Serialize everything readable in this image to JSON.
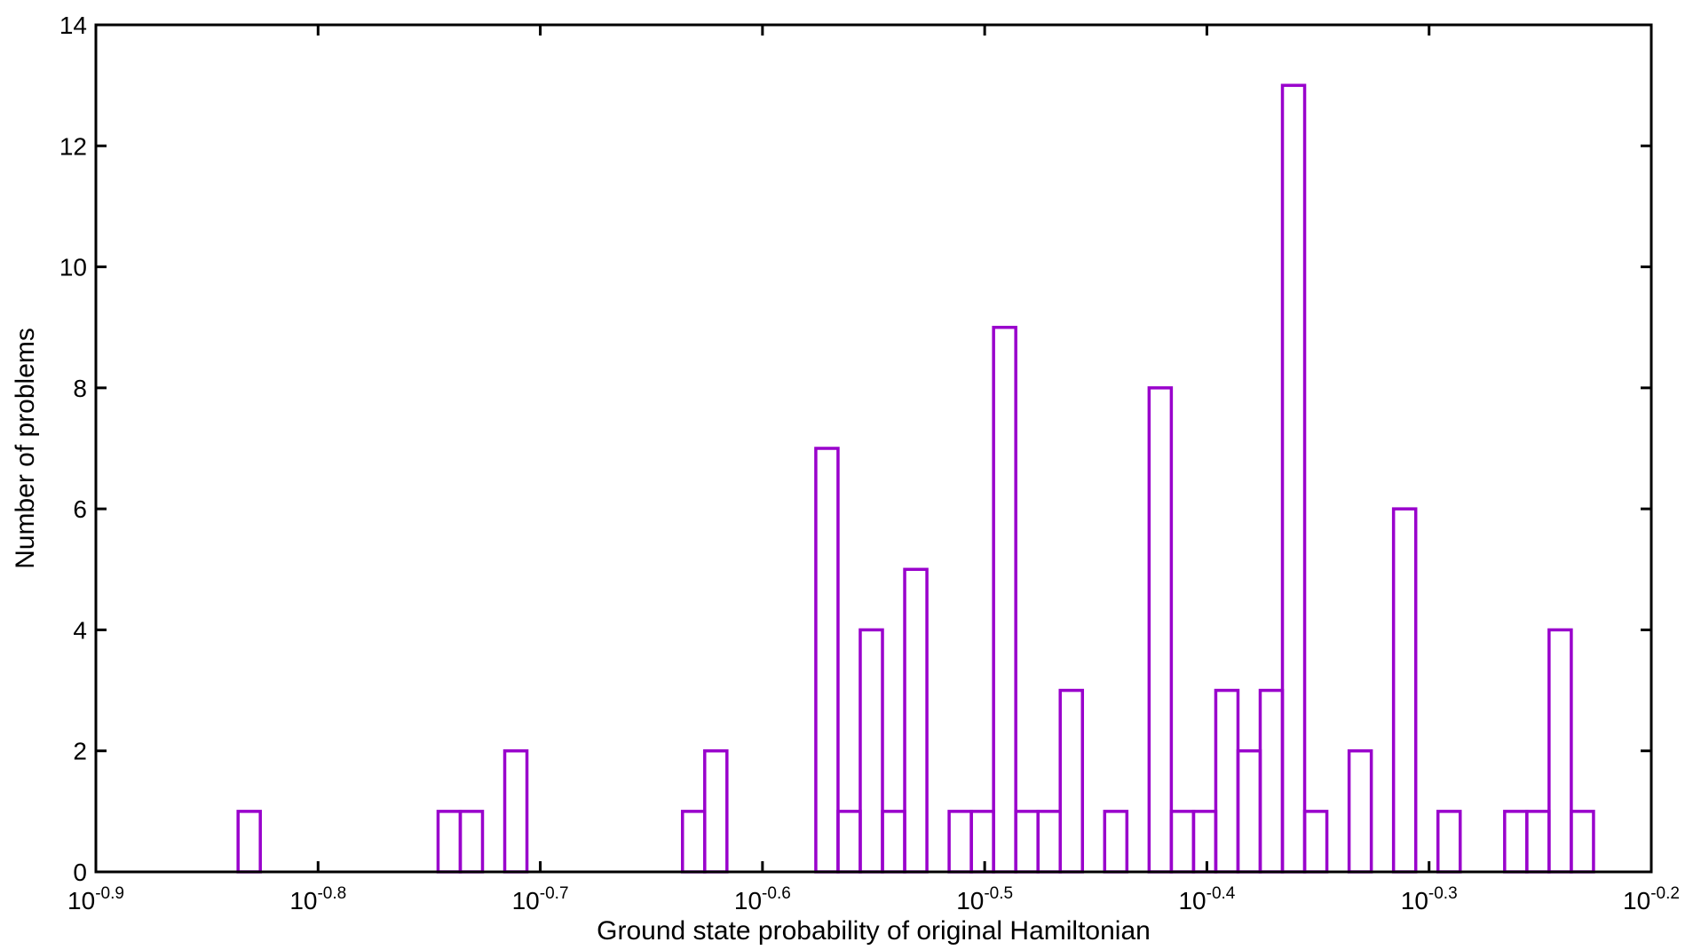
{
  "chart_data": {
    "type": "bar",
    "histogram": true,
    "xlabel": "Ground state probability of original Hamiltonian",
    "ylabel": "Number of problems",
    "x_scale": "log10",
    "xlim_exponent": [
      -0.9,
      -0.2
    ],
    "ylim": [
      0,
      14
    ],
    "x_ticks": [
      {
        "base": "10",
        "exp": "-0.9",
        "value": -0.9
      },
      {
        "base": "10",
        "exp": "-0.8",
        "value": -0.8
      },
      {
        "base": "10",
        "exp": "-0.7",
        "value": -0.7
      },
      {
        "base": "10",
        "exp": "-0.6",
        "value": -0.6
      },
      {
        "base": "10",
        "exp": "-0.5",
        "value": -0.5
      },
      {
        "base": "10",
        "exp": "-0.4",
        "value": -0.4
      },
      {
        "base": "10",
        "exp": "-0.3",
        "value": -0.3
      },
      {
        "base": "10",
        "exp": "-0.2",
        "value": -0.2
      }
    ],
    "y_ticks": [
      "0",
      "2",
      "4",
      "6",
      "8",
      "10",
      "12",
      "14"
    ],
    "bar_color": "#9900cc",
    "bars": [
      {
        "x0": -0.836,
        "x1": -0.826,
        "count": 1
      },
      {
        "x0": -0.746,
        "x1": -0.736,
        "count": 1
      },
      {
        "x0": -0.736,
        "x1": -0.726,
        "count": 1
      },
      {
        "x0": -0.716,
        "x1": -0.706,
        "count": 2
      },
      {
        "x0": -0.636,
        "x1": -0.626,
        "count": 1
      },
      {
        "x0": -0.626,
        "x1": -0.616,
        "count": 2
      },
      {
        "x0": -0.576,
        "x1": -0.566,
        "count": 7
      },
      {
        "x0": -0.566,
        "x1": -0.556,
        "count": 1
      },
      {
        "x0": -0.556,
        "x1": -0.546,
        "count": 4
      },
      {
        "x0": -0.546,
        "x1": -0.536,
        "count": 1
      },
      {
        "x0": -0.536,
        "x1": -0.526,
        "count": 5
      },
      {
        "x0": -0.516,
        "x1": -0.506,
        "count": 1
      },
      {
        "x0": -0.506,
        "x1": -0.496,
        "count": 1
      },
      {
        "x0": -0.496,
        "x1": -0.486,
        "count": 9
      },
      {
        "x0": -0.486,
        "x1": -0.476,
        "count": 1
      },
      {
        "x0": -0.476,
        "x1": -0.466,
        "count": 1
      },
      {
        "x0": -0.466,
        "x1": -0.456,
        "count": 3
      },
      {
        "x0": -0.446,
        "x1": -0.436,
        "count": 1
      },
      {
        "x0": -0.426,
        "x1": -0.416,
        "count": 8
      },
      {
        "x0": -0.416,
        "x1": -0.406,
        "count": 1
      },
      {
        "x0": -0.406,
        "x1": -0.396,
        "count": 1
      },
      {
        "x0": -0.396,
        "x1": -0.386,
        "count": 3
      },
      {
        "x0": -0.386,
        "x1": -0.376,
        "count": 2
      },
      {
        "x0": -0.376,
        "x1": -0.366,
        "count": 3
      },
      {
        "x0": -0.366,
        "x1": -0.356,
        "count": 13
      },
      {
        "x0": -0.356,
        "x1": -0.346,
        "count": 1
      },
      {
        "x0": -0.336,
        "x1": -0.326,
        "count": 2
      },
      {
        "x0": -0.316,
        "x1": -0.306,
        "count": 6
      },
      {
        "x0": -0.296,
        "x1": -0.286,
        "count": 1
      },
      {
        "x0": -0.266,
        "x1": -0.256,
        "count": 1
      },
      {
        "x0": -0.256,
        "x1": -0.246,
        "count": 1
      },
      {
        "x0": -0.246,
        "x1": -0.236,
        "count": 4
      },
      {
        "x0": -0.236,
        "x1": -0.226,
        "count": 1
      }
    ],
    "grid": false
  }
}
